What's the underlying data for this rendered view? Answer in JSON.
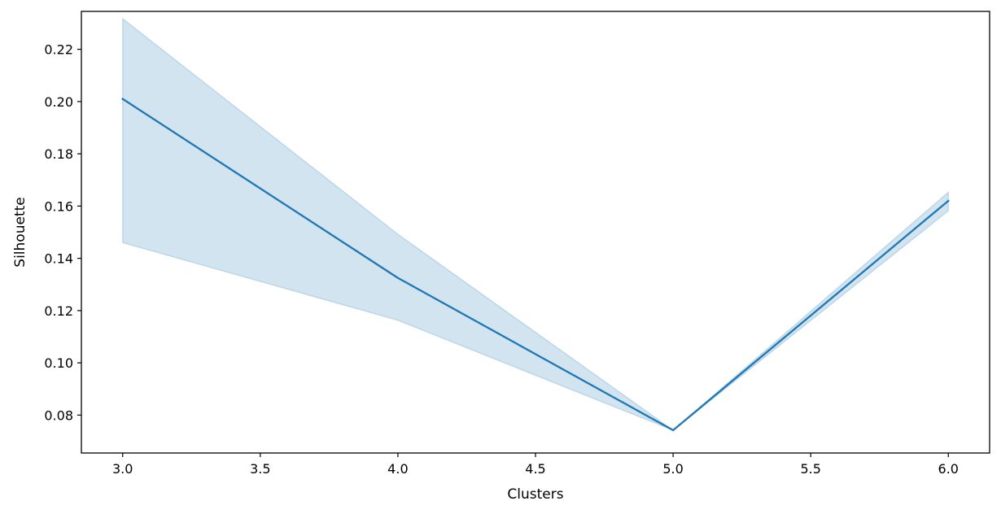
{
  "chart_data": {
    "type": "line",
    "title": "",
    "xlabel": "Clusters",
    "ylabel": "Silhouette",
    "xlim": [
      2.85,
      6.15
    ],
    "ylim": [
      0.0655,
      0.2345
    ],
    "xticks": [
      3.0,
      3.5,
      4.0,
      4.5,
      5.0,
      5.5,
      6.0
    ],
    "xtick_labels": [
      "3.0",
      "3.5",
      "4.0",
      "4.5",
      "5.0",
      "5.5",
      "6.0"
    ],
    "yticks": [
      0.08,
      0.1,
      0.12,
      0.14,
      0.16,
      0.18,
      0.2,
      0.22
    ],
    "ytick_labels": [
      "0.08",
      "0.10",
      "0.12",
      "0.14",
      "0.16",
      "0.18",
      "0.20",
      "0.22"
    ],
    "grid": false,
    "legend": "none",
    "series": [
      {
        "x": [
          3,
          4,
          5,
          6
        ],
        "y": [
          0.201,
          0.1325,
          0.0742,
          0.162
        ],
        "ci_lower": [
          0.146,
          0.1163,
          0.0742,
          0.1582
        ],
        "ci_upper": [
          0.2317,
          0.1492,
          0.0742,
          0.1653
        ],
        "color": "#1f77b4",
        "band_color": "#1f77b4"
      }
    ]
  }
}
